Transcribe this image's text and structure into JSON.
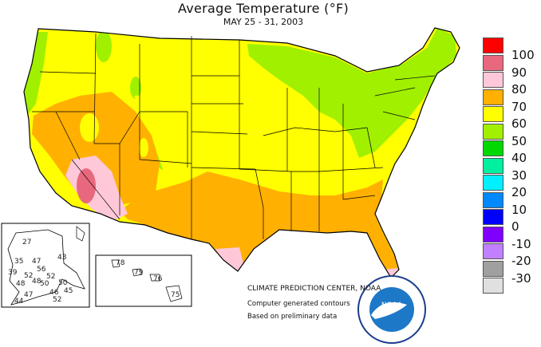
{
  "title": "Average Temperature (°F)",
  "subtitle": "MAY 25 - 31, 2003",
  "legend": {
    "labels": [
      "100",
      "90",
      "80",
      "70",
      "60",
      "50",
      "40",
      "30",
      "20",
      "10",
      "0",
      "-10",
      "-20",
      "-30"
    ],
    "colors": [
      "#ff0000",
      "#e8687e",
      "#ffc8d8",
      "#ffb000",
      "#ffff00",
      "#a0f000",
      "#00d800",
      "#00f0a0",
      "#00f0ff",
      "#0088ff",
      "#0000ff",
      "#8000ff",
      "#c080ff",
      "#a0a0a0",
      "#e0e0e0"
    ]
  },
  "credits": {
    "org": "CLIMATE PREDICTION CENTER, NOAA",
    "line2": "Computer generated contours",
    "line3": "Based on preliminary data"
  },
  "logo_text": "NOAA",
  "alaska": {
    "stations": [
      "27",
      "35",
      "47",
      "56",
      "39",
      "43",
      "52",
      "48",
      "50",
      "52",
      "50",
      "46",
      "47",
      "44",
      "52",
      "48",
      "45"
    ]
  },
  "hawaii": {
    "stations": [
      "78",
      "79",
      "76",
      "75"
    ]
  }
}
